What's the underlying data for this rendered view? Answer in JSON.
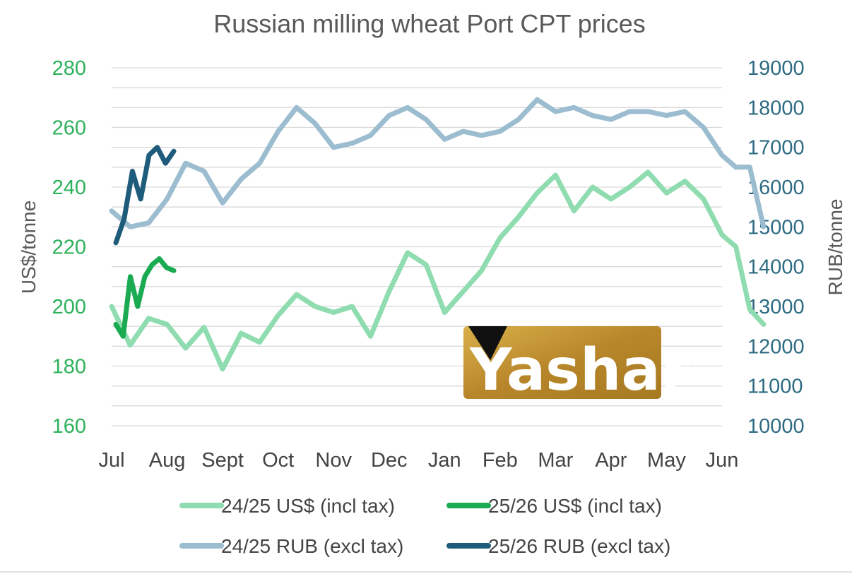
{
  "chart_data": {
    "type": "line",
    "title": "Russian milling wheat Port CPT prices",
    "ylabel_left": "US$/tonne",
    "ylabel_right": "RUB/tonne",
    "ylim_left": [
      160,
      280
    ],
    "ylim_right": [
      10000,
      19000
    ],
    "yticks_left": [
      "160",
      "180",
      "200",
      "220",
      "240",
      "260",
      "280"
    ],
    "yticks_right": [
      "10000",
      "11000",
      "12000",
      "13000",
      "14000",
      "15000",
      "16000",
      "17000",
      "18000",
      "19000"
    ],
    "x_domain": [
      "Jul",
      "Jun"
    ],
    "x_labels": [
      "Jul",
      "Aug",
      "Sept",
      "Oct",
      "Nov",
      "Dec",
      "Jan",
      "Feb",
      "Mar",
      "Apr",
      "May",
      "Jun"
    ],
    "grid": true,
    "legend_position": "bottom",
    "series": [
      {
        "name": "24/25 US$ (incl tax)",
        "axis": "left",
        "color": "#8fdcb0",
        "x": [
          "Jul",
          "Jul",
          "Jul",
          "Aug",
          "Aug",
          "Aug",
          "Sept",
          "Sept",
          "Sept",
          "Oct",
          "Oct",
          "Oct",
          "Nov",
          "Nov",
          "Nov",
          "Dec",
          "Dec",
          "Dec",
          "Jan",
          "Jan",
          "Jan",
          "Feb",
          "Feb",
          "Feb",
          "Mar",
          "Mar",
          "Mar",
          "Apr",
          "Apr",
          "Apr",
          "May",
          "May",
          "May",
          "Jun",
          "Jun",
          "Jun",
          "Jun"
        ],
        "values": [
          200,
          187,
          196,
          194,
          186,
          193,
          179,
          191,
          188,
          197,
          204,
          200,
          198,
          200,
          190,
          205,
          218,
          214,
          198,
          205,
          212,
          223,
          230,
          238,
          244,
          232,
          240,
          236,
          240,
          245,
          238,
          242,
          236,
          224,
          220,
          199,
          194
        ]
      },
      {
        "name": "25/26 US$ (incl tax)",
        "axis": "left",
        "color": "#1aab52",
        "x": [
          "Jul",
          "Jul",
          "Jul",
          "Jul",
          "Jul",
          "Jul",
          "Jul",
          "Jul",
          "Aug"
        ],
        "values": [
          194,
          190,
          210,
          200,
          210,
          214,
          216,
          213,
          212
        ]
      },
      {
        "name": "24/25 RUB (excl tax)",
        "axis": "right",
        "color": "#9cbccf",
        "x": [
          "Jul",
          "Jul",
          "Jul",
          "Aug",
          "Aug",
          "Aug",
          "Sept",
          "Sept",
          "Sept",
          "Oct",
          "Oct",
          "Oct",
          "Nov",
          "Nov",
          "Nov",
          "Dec",
          "Dec",
          "Dec",
          "Jan",
          "Jan",
          "Jan",
          "Feb",
          "Feb",
          "Feb",
          "Mar",
          "Mar",
          "Mar",
          "Apr",
          "Apr",
          "Apr",
          "May",
          "May",
          "May",
          "Jun",
          "Jun",
          "Jun",
          "Jun"
        ],
        "values": [
          15400,
          15000,
          15100,
          15700,
          16600,
          16400,
          15600,
          16200,
          16600,
          17400,
          18000,
          17600,
          17000,
          17100,
          17300,
          17800,
          18000,
          17700,
          17200,
          17400,
          17300,
          17400,
          17700,
          18200,
          17900,
          18000,
          17800,
          17700,
          17900,
          17900,
          17800,
          17900,
          17500,
          16800,
          16500,
          16500,
          15000
        ]
      },
      {
        "name": "25/26 RUB (excl tax)",
        "axis": "right",
        "color": "#1f5b7a",
        "x": [
          "Jul",
          "Jul",
          "Jul",
          "Jul",
          "Jul",
          "Jul",
          "Jul",
          "Aug"
        ],
        "values": [
          14600,
          15200,
          16400,
          15700,
          16800,
          17000,
          16600,
          16900
        ]
      }
    ]
  },
  "logo": {
    "text": "Yashar",
    "bg_color": "#c49a2a"
  }
}
